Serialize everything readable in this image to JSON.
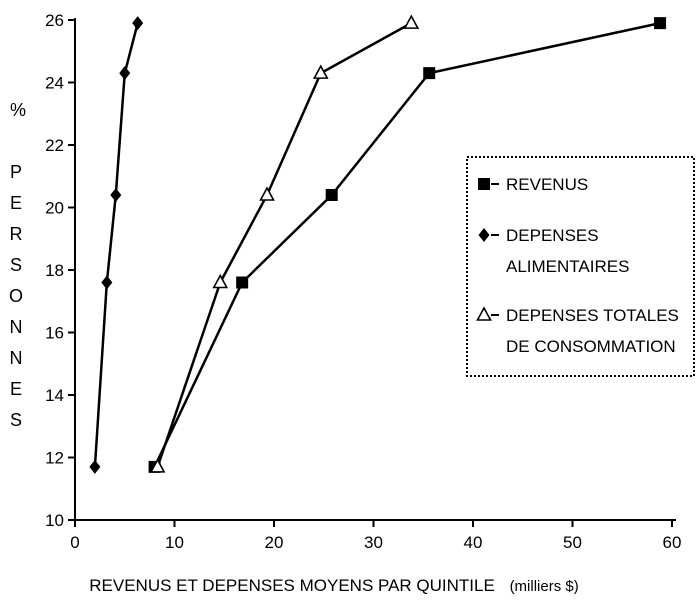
{
  "chart_data": {
    "type": "line",
    "xlabel": "REVENUS ET DEPENSES MOYENS PAR QUINTILE",
    "xlabel_unit": "(milliers $)",
    "ylabel_symbol": "%",
    "ylabel": "PERSONNES",
    "xlim": [
      0,
      60
    ],
    "ylim": [
      10,
      26
    ],
    "xticks": [
      0,
      10,
      20,
      30,
      40,
      50,
      60
    ],
    "yticks": [
      10,
      12,
      14,
      16,
      18,
      20,
      22,
      24,
      26
    ],
    "grid": false,
    "legend_position": "right",
    "series": [
      {
        "name": "REVENUS",
        "marker": "square",
        "x": [
          8.0,
          16.8,
          25.8,
          35.6,
          58.8
        ],
        "y": [
          11.7,
          17.6,
          20.4,
          24.3,
          25.9
        ]
      },
      {
        "name": "DEPENSES ALIMENTAIRES",
        "legend_lines": [
          "DEPENSES",
          "ALIMENTAIRES"
        ],
        "marker": "diamond",
        "x": [
          2.0,
          3.2,
          4.1,
          5.0,
          6.3
        ],
        "y": [
          11.7,
          17.6,
          20.4,
          24.3,
          25.9
        ]
      },
      {
        "name": "DEPENSES TOTALES DE CONSOMMATION",
        "legend_lines": [
          "DEPENSES TOTALES",
          "DE CONSOMMATION"
        ],
        "marker": "triangle",
        "x": [
          8.3,
          14.6,
          19.3,
          24.7,
          33.8
        ],
        "y": [
          11.7,
          17.6,
          20.4,
          24.3,
          25.9
        ]
      }
    ]
  }
}
